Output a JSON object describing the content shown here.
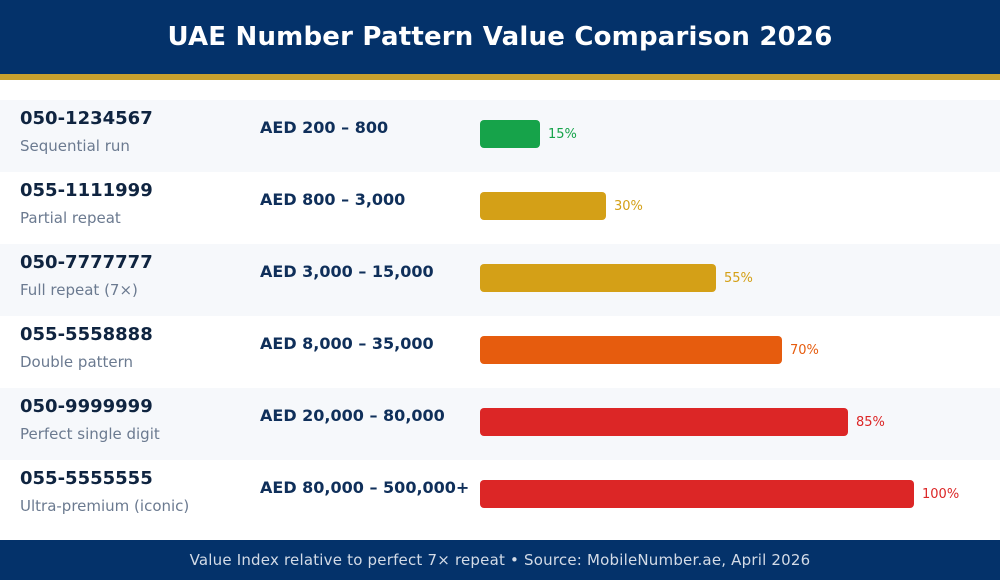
{
  "title": "UAE Number Pattern Value Comparison 2026",
  "footer": "Value Index relative to perfect 7× repeat • Source: MobileNumber.ae, April 2026",
  "colors": {
    "header_bg": "#04326a",
    "accent_gold": "#c9a12e",
    "green": "#16a34a",
    "gold": "#d4a017",
    "orange": "#e65c0e",
    "red": "#dc2626"
  },
  "chart_data": {
    "type": "bar",
    "orientation": "horizontal",
    "categories": [
      "050-1234567",
      "055-1111999",
      "050-7777777",
      "055-5558888",
      "050-9999999",
      "055-5555555"
    ],
    "descriptions": [
      "Sequential run",
      "Partial repeat",
      "Full repeat (7×)",
      "Double pattern",
      "Perfect single digit",
      "Ultra-premium (iconic)"
    ],
    "ranges": [
      "AED 200 – 800",
      "AED 800 – 3,000",
      "AED 3,000 – 15,000",
      "AED 8,000 – 35,000",
      "AED 20,000 – 80,000",
      "AED 80,000 – 500,000+"
    ],
    "values": [
      15,
      30,
      55,
      70,
      85,
      100
    ],
    "value_labels": [
      "15%",
      "30%",
      "55%",
      "70%",
      "85%",
      "100%"
    ],
    "bar_colors": [
      "#16a34a",
      "#d4a017",
      "#d4a017",
      "#e65c0e",
      "#dc2626",
      "#dc2626"
    ],
    "xlim": [
      0,
      100
    ]
  }
}
